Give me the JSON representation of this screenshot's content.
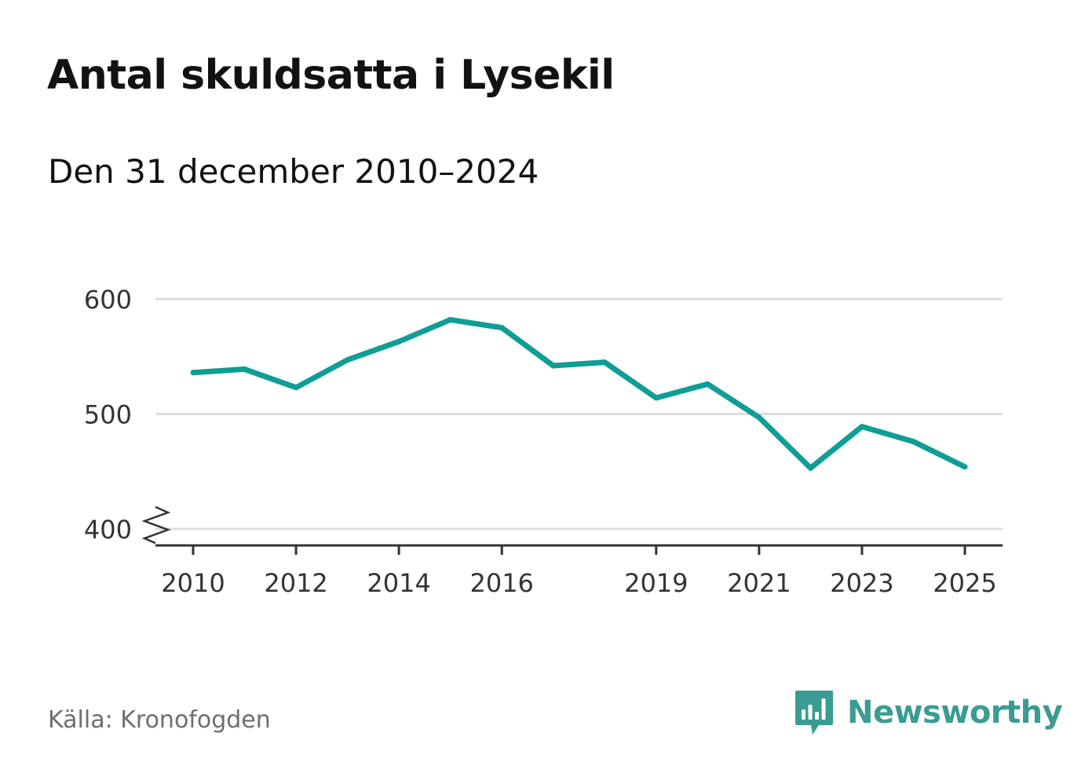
{
  "title": "Antal skuldsatta i Lysekil",
  "subtitle": "Den 31 december 2010–2024",
  "source": "Källa: Kronofogden",
  "brand": {
    "name": "Newsworthy",
    "icon": "newsworthy-bar-chart-icon",
    "color": "#3a9c92"
  },
  "colors": {
    "line": "#0f9e96",
    "grid": "#dcdcdc",
    "axis": "#333333",
    "tick_text": "#333333"
  },
  "chart_data": {
    "type": "line",
    "title": "Antal skuldsatta i Lysekil",
    "subtitle": "Den 31 december 2010–2024",
    "xlabel": "",
    "ylabel": "",
    "x_tick_labels": [
      "2010",
      "2012",
      "2014",
      "2016",
      "2019",
      "2021",
      "2023",
      "2025"
    ],
    "y_tick_labels": [
      "400",
      "500",
      "600"
    ],
    "xlim": [
      2010,
      2025
    ],
    "ylim": [
      400,
      600
    ],
    "y_axis_break": true,
    "grid": true,
    "legend": "none",
    "series": [
      {
        "name": "Antal skuldsatta",
        "x": [
          2010,
          2011,
          2012,
          2013,
          2014,
          2015,
          2016,
          2017,
          2018,
          2019,
          2020,
          2021,
          2022,
          2023,
          2024,
          2025
        ],
        "values": [
          536,
          539,
          523,
          547,
          563,
          582,
          575,
          542,
          545,
          514,
          526,
          497,
          453,
          489,
          476,
          454
        ]
      }
    ]
  }
}
